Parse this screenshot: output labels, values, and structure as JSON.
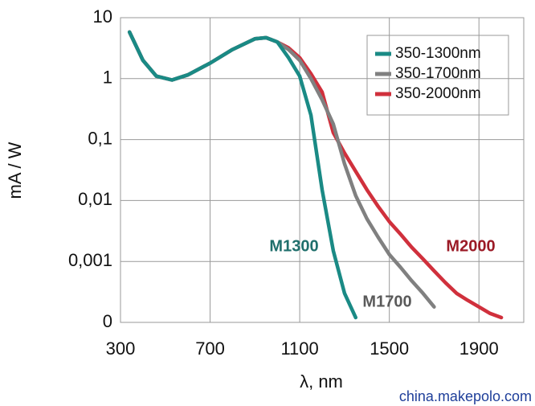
{
  "chart_data": {
    "type": "line",
    "ylabel": "mA / W",
    "xlabel": "λ, nm",
    "log_y": true,
    "grid": true,
    "legend": "upper right",
    "x": [
      340,
      400,
      460,
      530,
      600,
      700,
      800,
      900,
      950,
      1000,
      1050,
      1100,
      1150,
      1200,
      1250,
      1300,
      1350,
      1400,
      1450,
      1500,
      1550,
      1600,
      1650,
      1700,
      1750,
      1800,
      1850,
      1900,
      1950,
      2000
    ],
    "xlim": [
      300,
      2100
    ],
    "xticks": [
      300,
      700,
      1100,
      1500,
      1900
    ],
    "ylim": [
      0.0001,
      10
    ],
    "yticks": [
      {
        "value": 0.0001,
        "label": "0"
      },
      {
        "value": 0.001,
        "label": "0,001"
      },
      {
        "value": 0.01,
        "label": "0,01"
      },
      {
        "value": 0.1,
        "label": "0,1"
      },
      1,
      10
    ],
    "series": [
      {
        "name": "350-1300nm",
        "color": "#1a8a85",
        "values": [
          5.8,
          2.0,
          1.1,
          0.95,
          1.15,
          1.8,
          3.0,
          4.5,
          4.7,
          4.0,
          2.2,
          1.1,
          0.25,
          0.015,
          0.0015,
          0.0003,
          0.00012,
          null,
          null,
          null,
          null,
          null,
          null,
          null,
          null,
          null,
          null,
          null,
          null,
          null
        ]
      },
      {
        "name": "350-1700nm",
        "color": "#808080",
        "values": [
          5.8,
          2.0,
          1.1,
          0.95,
          1.15,
          1.8,
          3.0,
          4.5,
          4.7,
          4.0,
          3.0,
          2.0,
          1.0,
          0.45,
          0.18,
          0.04,
          0.012,
          0.005,
          0.0025,
          0.0013,
          0.0008,
          0.00048,
          0.0003,
          0.00018,
          null,
          null,
          null,
          null,
          null,
          null
        ]
      },
      {
        "name": "350-2000nm",
        "color": "#d0303c",
        "values": [
          5.8,
          2.0,
          1.1,
          0.95,
          1.15,
          1.8,
          3.0,
          4.5,
          4.7,
          4.0,
          3.2,
          2.2,
          1.2,
          0.6,
          0.13,
          0.06,
          0.03,
          0.015,
          0.008,
          0.0045,
          0.0028,
          0.0017,
          0.0011,
          0.0007,
          0.00045,
          0.0003,
          0.00023,
          0.00018,
          0.00014,
          0.00012
        ]
      }
    ],
    "annotations": [
      "M1300",
      "M1700",
      "M2000"
    ],
    "watermark": "china.makepolo.com"
  }
}
